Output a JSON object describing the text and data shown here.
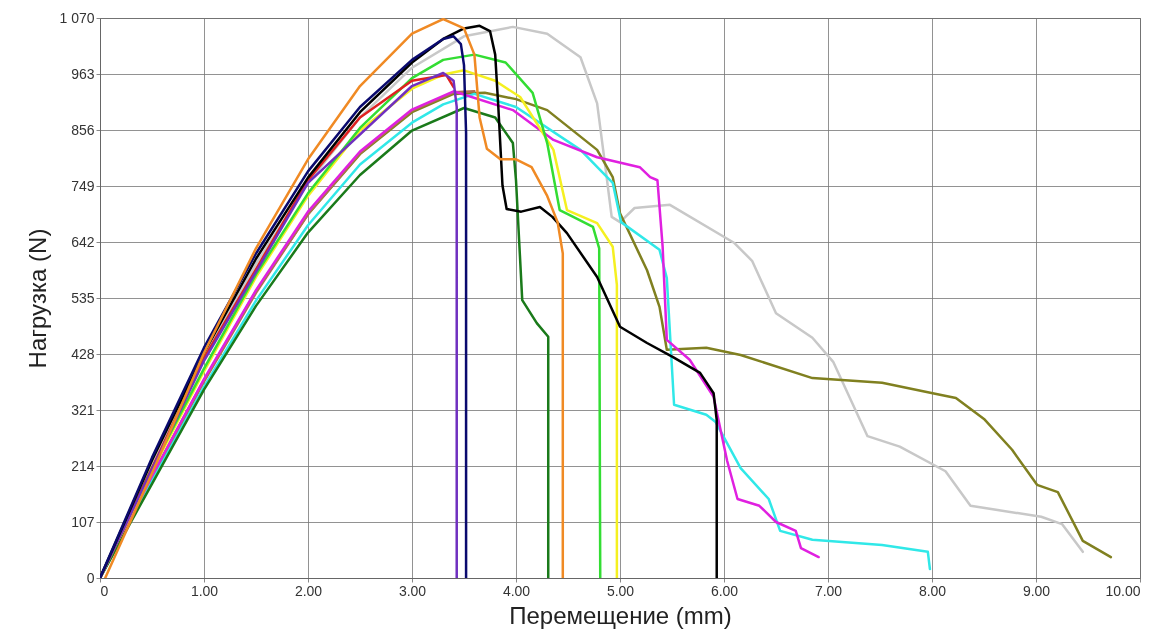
{
  "chart_data": {
    "type": "line",
    "xlabel": "Перемещение (mm)",
    "ylabel": "Нагрузка (N)",
    "xlim": [
      0,
      10
    ],
    "ylim": [
      0,
      1070
    ],
    "xticks": [
      0,
      {
        "value": 1,
        "label": "1.00"
      },
      {
        "value": 2,
        "label": "2.00"
      },
      {
        "value": 3,
        "label": "3.00"
      },
      {
        "value": 4,
        "label": "4.00"
      },
      {
        "value": 5,
        "label": "5.00"
      },
      {
        "value": 6,
        "label": "6.00"
      },
      {
        "value": 7,
        "label": "7.00"
      },
      {
        "value": 8,
        "label": "8.00"
      },
      {
        "value": 9,
        "label": "9.00"
      },
      {
        "value": 10,
        "label": "10.00"
      }
    ],
    "yticks": [
      0,
      107,
      214,
      321,
      428,
      535,
      642,
      749,
      856,
      963,
      {
        "value": 1070,
        "label": "1 070"
      }
    ],
    "grid": true,
    "series": [
      {
        "color": "#c8c8c8",
        "x": [
          0,
          0.5,
          1,
          1.5,
          2,
          2.5,
          3,
          3.5,
          3.97,
          4.3,
          4.62,
          4.78,
          4.85,
          4.92,
          5.0,
          5.14,
          5.48,
          6.1,
          6.27,
          6.5,
          6.85,
          7.05,
          7.38,
          7.69,
          8.13,
          8.37,
          9.05,
          9.25,
          9.45
        ],
        "values": [
          0,
          220,
          420,
          600,
          755,
          880,
          975,
          1035,
          1053,
          1040,
          995,
          907,
          800,
          690,
          680,
          707,
          713,
          640,
          606,
          506,
          459,
          413,
          271,
          251,
          204,
          138,
          117,
          103,
          50
        ]
      },
      {
        "color": "#808020",
        "x": [
          0,
          0.5,
          1,
          1.5,
          2,
          2.5,
          3,
          3.4,
          3.7,
          4.0,
          4.3,
          4.78,
          4.93,
          5.0,
          5.26,
          5.38,
          5.45,
          5.83,
          6.16,
          6.85,
          7.52,
          8.03,
          8.23,
          8.5,
          8.77,
          9.01,
          9.21,
          9.45,
          9.72
        ],
        "values": [
          0,
          195,
          378,
          548,
          695,
          810,
          890,
          925,
          927,
          915,
          894,
          818,
          766,
          697,
          588,
          518,
          436,
          440,
          426,
          382,
          373,
          352,
          344,
          304,
          245,
          178,
          164,
          71,
          40
        ]
      },
      {
        "color": "#b07050",
        "x": [
          0,
          0.5,
          1,
          1.5,
          2,
          2.5,
          3,
          3.4,
          3.6
        ],
        "values": [
          0,
          190,
          375,
          545,
          695,
          812,
          893,
          928,
          930
        ]
      },
      {
        "color": "#30e8e8",
        "x": [
          0,
          0.5,
          1,
          1.5,
          2,
          2.5,
          3,
          3.3,
          3.6,
          4.0,
          4.62,
          4.93,
          5.01,
          5.38,
          5.45,
          5.52,
          5.83,
          5.92,
          6.16,
          6.43,
          6.54,
          6.85,
          7.52,
          7.96,
          7.98
        ],
        "values": [
          0,
          185,
          365,
          530,
          674,
          790,
          870,
          905,
          925,
          900,
          818,
          755,
          680,
          627,
          573,
          331,
          312,
          298,
          210,
          151,
          90,
          73,
          63,
          50,
          17
        ]
      },
      {
        "color": "#e020e0",
        "x": [
          0,
          0.5,
          1,
          1.5,
          2,
          2.5,
          3,
          3.4,
          3.97,
          4.36,
          4.78,
          5.19,
          5.29,
          5.36,
          5.41,
          5.45,
          5.67,
          5.9,
          6.03,
          6.13,
          6.34,
          6.5,
          6.69,
          6.74,
          6.91
        ],
        "values": [
          0,
          195,
          380,
          550,
          700,
          815,
          895,
          930,
          894,
          837,
          804,
          785,
          766,
          760,
          633,
          455,
          417,
          346,
          224,
          151,
          138,
          107,
          90,
          57,
          40
        ]
      },
      {
        "color": "#1a7a1a",
        "x": [
          0,
          0.5,
          1,
          1.5,
          2,
          2.5,
          3,
          3.5,
          3.8,
          3.97,
          4.0,
          4.06,
          4.2,
          4.31,
          4.31
        ],
        "values": [
          0,
          180,
          360,
          520,
          660,
          770,
          855,
          898,
          880,
          831,
          760,
          531,
          487,
          461,
          0
        ]
      },
      {
        "color": "#f5f020",
        "x": [
          0,
          0.5,
          1,
          1.5,
          2,
          2.5,
          3,
          3.3,
          3.5,
          3.8,
          4.04,
          4.36,
          4.49,
          4.78,
          4.93,
          4.97,
          4.97
        ],
        "values": [
          0,
          205,
          395,
          575,
          730,
          855,
          935,
          962,
          970,
          950,
          919,
          818,
          703,
          678,
          633,
          560,
          0
        ]
      },
      {
        "color": "#33dd33",
        "x": [
          0,
          0.5,
          1,
          1.5,
          2,
          2.5,
          3,
          3.3,
          3.6,
          3.9,
          4.16,
          4.3,
          4.42,
          4.55,
          4.74,
          4.8,
          4.81
        ],
        "values": [
          0,
          210,
          400,
          580,
          735,
          860,
          955,
          990,
          1000,
          985,
          927,
          831,
          703,
          690,
          671,
          630,
          0
        ]
      },
      {
        "color": "#e02020",
        "x": [
          0,
          1,
          2,
          2.5,
          3,
          3.33,
          3.4
        ],
        "values": [
          0,
          420,
          760,
          880,
          950,
          961,
          938
        ]
      },
      {
        "color": "#7030c0",
        "x": [
          0,
          1,
          2,
          3,
          3.3,
          3.4,
          3.43,
          3.43
        ],
        "values": [
          0,
          415,
          755,
          940,
          965,
          950,
          900,
          0
        ]
      },
      {
        "color": "#000000",
        "x": [
          0,
          0.5,
          1,
          1.5,
          2,
          2.5,
          3,
          3.3,
          3.5,
          3.65,
          3.75,
          3.8,
          3.83,
          3.87,
          3.91,
          4.05,
          4.23,
          4.35,
          4.49,
          4.78,
          5.0,
          5.26,
          5.51,
          5.77,
          5.9,
          5.93,
          5.93
        ],
        "values": [
          0,
          225,
          430,
          610,
          765,
          890,
          985,
          1030,
          1050,
          1055,
          1045,
          1000,
          900,
          750,
          705,
          700,
          709,
          690,
          659,
          575,
          480,
          449,
          422,
          392,
          353,
          302,
          0
        ]
      },
      {
        "color": "#0a0a6e",
        "x": [
          0,
          0.5,
          1,
          1.5,
          2,
          2.5,
          3,
          3.3,
          3.4,
          3.47,
          3.5,
          3.52,
          3.52
        ],
        "values": [
          0,
          230,
          440,
          620,
          777,
          900,
          990,
          1030,
          1035,
          1020,
          980,
          850,
          0
        ]
      },
      {
        "color": "#f08a24",
        "x": [
          0.05,
          0.5,
          1,
          1.5,
          2,
          2.5,
          3,
          3.3,
          3.5,
          3.6,
          3.65,
          3.72,
          3.85,
          4.0,
          4.15,
          4.3,
          4.4,
          4.45,
          4.45
        ],
        "values": [
          0,
          200,
          430,
          630,
          800,
          940,
          1040,
          1068,
          1050,
          1000,
          880,
          820,
          800,
          800,
          785,
          730,
          680,
          620,
          0
        ]
      }
    ]
  }
}
